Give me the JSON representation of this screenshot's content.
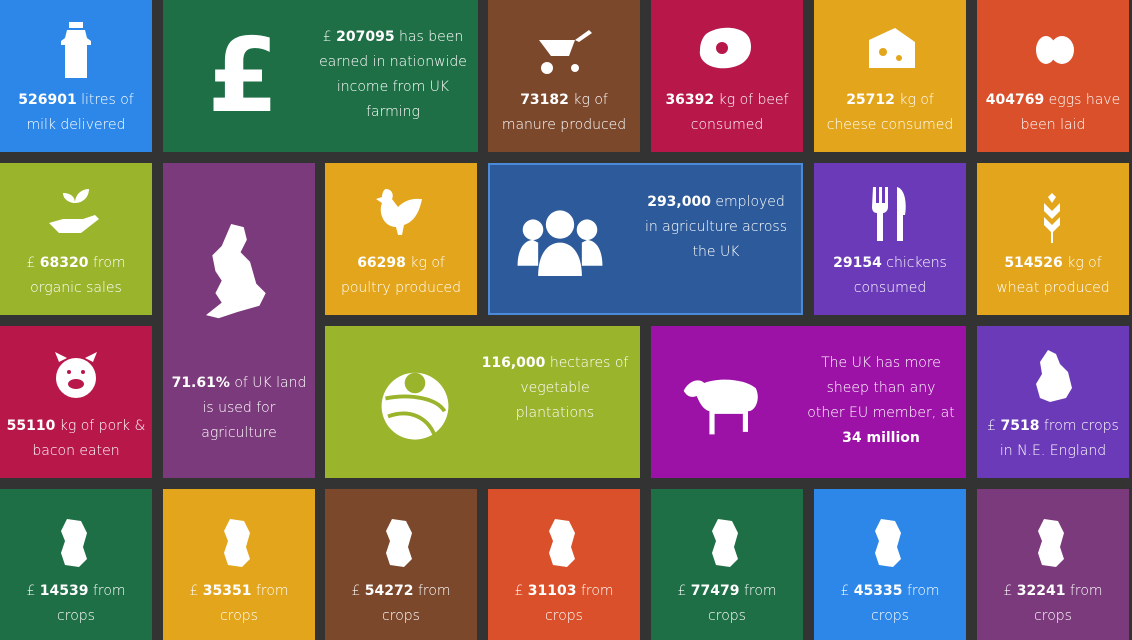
{
  "colors": {
    "background": "#333333",
    "blue": "#2d87e8",
    "green": "#1f6f46",
    "brown": "#7b482c",
    "crimson": "#b8174a",
    "yellow": "#e3a51b",
    "orange": "#d9502a",
    "lime": "#9ab42c",
    "purple": "#7b3a7b",
    "navy": "#2c5a9a",
    "violet": "#6b3ab8",
    "magenta": "#9c12a6"
  },
  "tiles": {
    "milk": {
      "icon": "milk-churn-icon",
      "value": "526901",
      "text": " litres of milk delivered"
    },
    "income": {
      "icon": "pound-sign-icon",
      "prefix": "£ ",
      "value": "207095",
      "text": " has been earned in nationwide income from UK farming"
    },
    "manure": {
      "icon": "wheelbarrow-icon",
      "value": "73182",
      "text": " kg of manure produced"
    },
    "beef": {
      "icon": "steak-icon",
      "value": "36392",
      "text": " kg of beef consumed"
    },
    "cheese": {
      "icon": "cheese-icon",
      "value": "25712",
      "text": " kg of cheese consumed"
    },
    "eggs": {
      "icon": "egg-icon",
      "value": "404769",
      "text": " eggs have been laid"
    },
    "organic": {
      "icon": "plant-hand-icon",
      "prefix": "£ ",
      "value": "68320",
      "text": " from organic sales"
    },
    "land": {
      "icon": "uk-map-icon",
      "value": "71.61%",
      "text": " of UK land is used for agriculture"
    },
    "poultry": {
      "icon": "chicken-icon",
      "value": "66298",
      "text": " kg of poultry produced"
    },
    "employed": {
      "icon": "people-icon",
      "value": "293,000",
      "text": " employed in agriculture across the UK"
    },
    "chickens": {
      "icon": "fork-knife-icon",
      "value": "29154",
      "text": " chickens consumed"
    },
    "wheat": {
      "icon": "wheat-icon",
      "value": "514526",
      "text": " kg of wheat produced"
    },
    "pork": {
      "icon": "pig-icon",
      "value": "55110",
      "text": " kg of pork & bacon eaten"
    },
    "vegetable": {
      "icon": "field-sun-icon",
      "value": "116,000",
      "text": " hectares of vegetable plantations"
    },
    "sheep": {
      "icon": "sheep-icon",
      "text": "The UK has more sheep than any other EU member, at ",
      "value": "34 million"
    },
    "ne_england": {
      "icon": "region-map-icon",
      "prefix": "£ ",
      "value": "7518",
      "text": " from crops in N.E. England"
    }
  },
  "crops": [
    {
      "prefix": "£ ",
      "value": "14539",
      "text": " from crops"
    },
    {
      "prefix": "£ ",
      "value": "35351",
      "text": " from crops"
    },
    {
      "prefix": "£ ",
      "value": "54272",
      "text": " from crops"
    },
    {
      "prefix": "£ ",
      "value": "31103",
      "text": " from crops"
    },
    {
      "prefix": "£ ",
      "value": "77479",
      "text": " from crops"
    },
    {
      "prefix": "£ ",
      "value": "45335",
      "text": " from crops"
    },
    {
      "prefix": "£ ",
      "value": "32241",
      "text": " from crops"
    }
  ]
}
